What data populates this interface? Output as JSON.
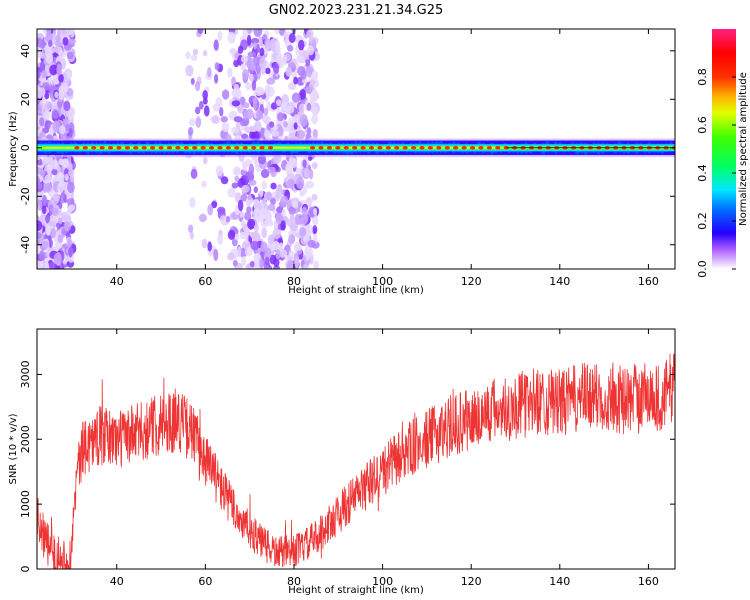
{
  "title": "GN02.2023.231.21.34.G25",
  "chart_data": [
    {
      "type": "heatmap",
      "xlabel": "Height of straight line (km)",
      "ylabel": "Frequency (Hz)",
      "xlim": [
        22,
        166
      ],
      "ylim": [
        -50,
        49
      ],
      "xticks": [
        40,
        60,
        80,
        100,
        120,
        140,
        160
      ],
      "yticks": [
        -40,
        -20,
        0,
        20,
        40
      ],
      "grid": false,
      "colorbar": {
        "label": "Normalized spectral amplitude",
        "range": [
          0.0,
          1.0
        ],
        "ticks": [
          0.0,
          0.2,
          0.4,
          0.6,
          0.8
        ]
      },
      "signal_band_hz": [
        -3,
        3
      ],
      "dominant_frequency_hz": 0,
      "noisy_regions_km": [
        [
          22,
          30
        ],
        [
          66,
          85
        ]
      ],
      "sparse_noise_region_km": [
        [
          56,
          66
        ]
      ]
    },
    {
      "type": "line",
      "xlabel": "Height of straight line (km)",
      "ylabel": "SNR (10 * v/v)",
      "xlim": [
        22,
        166
      ],
      "ylim": [
        0,
        3700
      ],
      "xticks": [
        40,
        60,
        80,
        100,
        120,
        140,
        160
      ],
      "yticks": [
        0,
        1000,
        2000,
        3000
      ],
      "grid": false,
      "series": [
        {
          "color": "#ee3333",
          "x": [
            22,
            24,
            26,
            28,
            29.5,
            31,
            33,
            36,
            40,
            45,
            50,
            54,
            57,
            60,
            64,
            68,
            72,
            76,
            80,
            83,
            86,
            90,
            95,
            100,
            105,
            110,
            115,
            120,
            125,
            130,
            135,
            140,
            145,
            150,
            155,
            160,
            163,
            166
          ],
          "y": [
            800,
            400,
            200,
            150,
            100,
            1500,
            1900,
            2050,
            2000,
            2100,
            2250,
            2300,
            2100,
            1700,
            1200,
            750,
            450,
            250,
            280,
            380,
            550,
            850,
            1200,
            1500,
            1800,
            2000,
            2200,
            2300,
            2450,
            2500,
            2600,
            2550,
            2650,
            2650,
            2600,
            2700,
            2600,
            2900
          ]
        }
      ]
    }
  ]
}
